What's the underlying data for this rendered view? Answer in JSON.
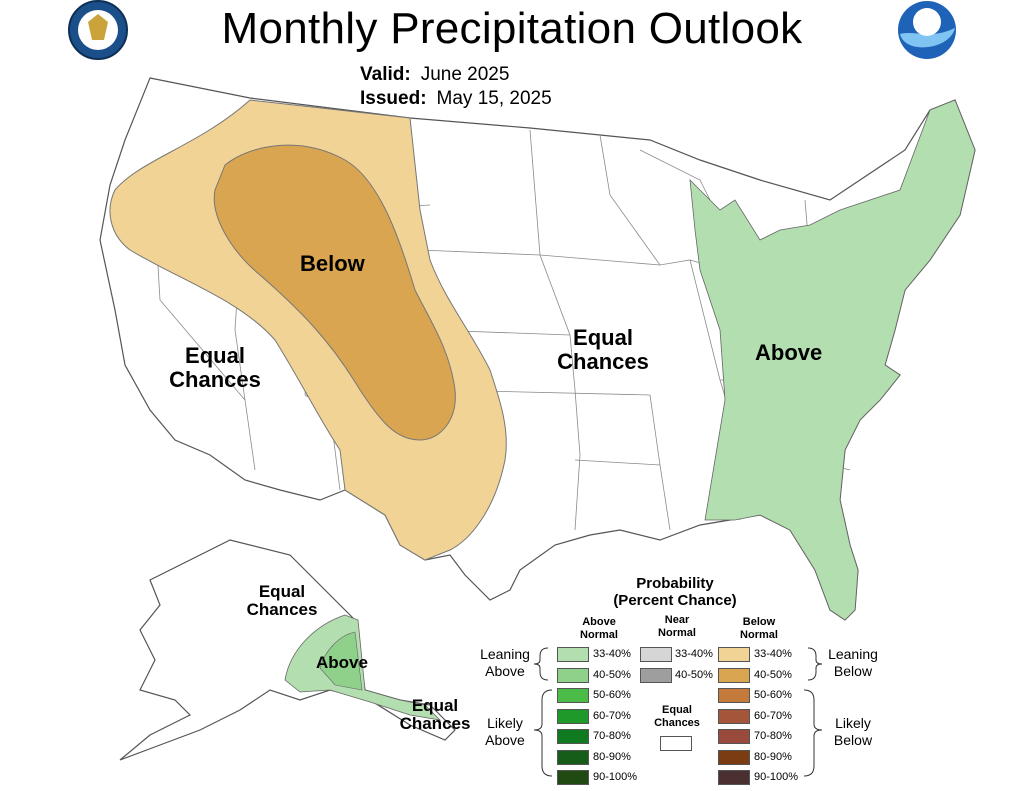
{
  "header": {
    "title": "Monthly Precipitation Outlook",
    "valid_label": "Valid:",
    "valid_value": "June 2025",
    "issued_label": "Issued:",
    "issued_value": "May 15, 2025"
  },
  "logos": {
    "left": "department-of-commerce-seal",
    "right": "noaa-logo"
  },
  "regions": {
    "below": "Below",
    "above_east": "Above",
    "above_alaska": "Above",
    "equal_west": "Equal Chances",
    "equal_central": "Equal Chances",
    "equal_alaska_north": "Equal Chances",
    "equal_alaska_south": "Equal Chances"
  },
  "legend": {
    "title_line1": "Probability",
    "title_line2": "(Percent Chance)",
    "col_above_1": "Above",
    "col_above_2": "Normal",
    "col_near_1": "Near",
    "col_near_2": "Normal",
    "col_below_1": "Below",
    "col_below_2": "Normal",
    "leaning_above_1": "Leaning",
    "leaning_above_2": "Above",
    "leaning_below_1": "Leaning",
    "leaning_below_2": "Below",
    "likely_above_1": "Likely",
    "likely_above_2": "Above",
    "likely_below_1": "Likely",
    "likely_below_2": "Below",
    "equal_1": "Equal",
    "equal_2": "Chances",
    "above": [
      {
        "label": "33-40%",
        "color": "#b3deb0"
      },
      {
        "label": "40-50%",
        "color": "#8fd18a"
      },
      {
        "label": "50-60%",
        "color": "#4cbc48"
      },
      {
        "label": "60-70%",
        "color": "#1f9a2a"
      },
      {
        "label": "70-80%",
        "color": "#0f7a20"
      },
      {
        "label": "80-90%",
        "color": "#155d18"
      },
      {
        "label": "90-100%",
        "color": "#214a12"
      }
    ],
    "near": [
      {
        "label": "33-40%",
        "color": "#d6d6d6"
      },
      {
        "label": "40-50%",
        "color": "#9e9e9e"
      }
    ],
    "below": [
      {
        "label": "33-40%",
        "color": "#f2d396"
      },
      {
        "label": "40-50%",
        "color": "#d9a550"
      },
      {
        "label": "50-60%",
        "color": "#c47a3a"
      },
      {
        "label": "60-70%",
        "color": "#a5553a"
      },
      {
        "label": "70-80%",
        "color": "#9a4a3a"
      },
      {
        "label": "80-90%",
        "color": "#7a3c10"
      },
      {
        "label": "90-100%",
        "color": "#4a3030"
      }
    ]
  }
}
